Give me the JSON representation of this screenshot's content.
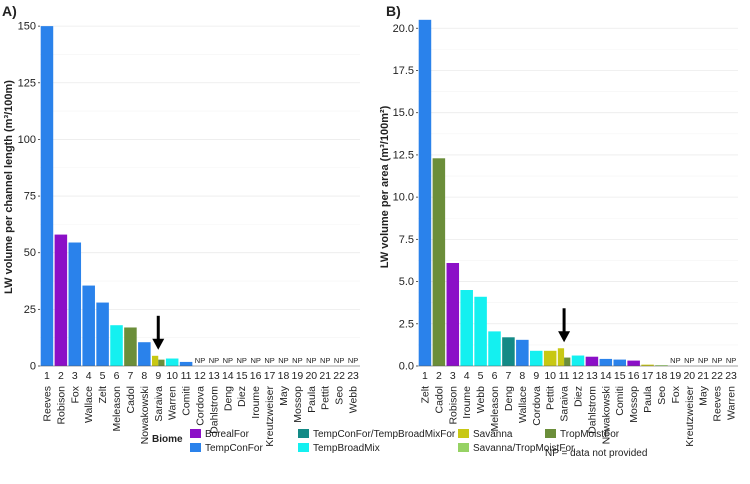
{
  "chart_data": [
    {
      "type": "bar",
      "panel_label": "A)",
      "ylabel": "LW volume per channel length (m³/100m)",
      "ylim": [
        0,
        158
      ],
      "yticks": [
        0,
        25,
        50,
        75,
        100,
        125,
        150
      ],
      "grid": true,
      "index_labels": [
        "1",
        "2",
        "3",
        "4",
        "5",
        "6",
        "7",
        "8",
        "9",
        "10",
        "11",
        "12",
        "13",
        "14",
        "15",
        "16",
        "17",
        "18",
        "19",
        "20",
        "21",
        "22",
        "23"
      ],
      "categories": [
        "Reeves",
        "Robison",
        "Fox",
        "Wallace",
        "Zelt",
        "Meleason",
        "Cadol",
        "Nowakowski",
        "Saraiva",
        "Warren",
        "Comiti",
        "Cordova",
        "Dahlstrom",
        "Deng",
        "Diez",
        "Iroume",
        "Kreutzweiser",
        "May",
        "Mossop",
        "Paula",
        "Pettit",
        "Seo",
        "Webb"
      ],
      "values": [
        150,
        58,
        54.5,
        35.5,
        28,
        18,
        17,
        10.5,
        4.5,
        3.3,
        1.8,
        null,
        null,
        null,
        null,
        null,
        null,
        null,
        null,
        null,
        null,
        null,
        null
      ],
      "biomes": [
        "TempConFor",
        "BorealFor",
        "TempConFor",
        "TempConFor",
        "TempConFor",
        "TempBroadMix",
        "TropMoistFor",
        "TempConFor",
        "Savanna",
        "TempBroadMix",
        "TempConFor",
        null,
        null,
        null,
        null,
        null,
        null,
        null,
        null,
        null,
        null,
        null,
        null
      ],
      "overlay": [
        null,
        null,
        null,
        null,
        null,
        null,
        null,
        null,
        {
          "value": 2.8,
          "biome": "TropMoistFor"
        },
        null,
        null,
        null,
        null,
        null,
        null,
        null,
        null,
        null,
        null,
        null,
        null,
        null,
        null
      ],
      "missing_label": "NP",
      "arrow_at_index": 9
    },
    {
      "type": "bar",
      "panel_label": "B)",
      "ylabel": "LW volume per area (m³/100m²)",
      "ylim": [
        0,
        21.2
      ],
      "yticks": [
        0,
        2.5,
        5,
        7.5,
        10,
        12.5,
        15,
        17.5,
        20
      ],
      "ytick_labels": [
        "0.0",
        "2.5",
        "5.0",
        "7.5",
        "10.0",
        "12.5",
        "15.0",
        "17.5",
        "20.0"
      ],
      "grid": true,
      "index_labels": [
        "1",
        "2",
        "3",
        "4",
        "5",
        "6",
        "7",
        "8",
        "9",
        "10",
        "11",
        "12",
        "13",
        "14",
        "15",
        "16",
        "17",
        "18",
        "19",
        "20",
        "21",
        "22",
        "23"
      ],
      "categories": [
        "Zelt",
        "Cadol",
        "Robison",
        "Iroume",
        "Webb",
        "Meleason",
        "Deng",
        "Wallace",
        "Cordova",
        "Pettit",
        "Saraiva",
        "Diez",
        "Dahlstrom",
        "Nowakowski",
        "Comiti",
        "Mossop",
        "Paula",
        "Seo",
        "Fox",
        "Kreutzweiser",
        "May",
        "Reeves",
        "Warren"
      ],
      "values": [
        20.5,
        12.3,
        6.1,
        4.5,
        4.1,
        2.05,
        1.7,
        1.55,
        0.9,
        0.9,
        1.05,
        0.62,
        0.55,
        0.42,
        0.38,
        0.32,
        0.08,
        0.05,
        null,
        null,
        null,
        null,
        null
      ],
      "biomes": [
        "TempConFor",
        "TropMoistFor",
        "BorealFor",
        "TempBroadMix",
        "TempBroadMix",
        "TempBroadMix",
        "TempConFor/TempBroadMixFor",
        "TempConFor",
        "TempBroadMix",
        "Savanna",
        "Savanna",
        "TempBroadMix",
        "BorealFor",
        "TempConFor",
        "TempConFor",
        "BorealFor",
        "Savanna",
        "Savanna/TropMoistFor",
        null,
        null,
        null,
        null,
        null
      ],
      "overlay": [
        null,
        null,
        null,
        null,
        null,
        null,
        null,
        null,
        null,
        null,
        {
          "value": 0.5,
          "biome": "TropMoistFor"
        },
        null,
        null,
        null,
        null,
        null,
        null,
        null,
        null,
        null,
        null,
        null,
        null
      ],
      "missing_label": "NP",
      "arrow_at_index": 11
    }
  ],
  "legend": {
    "title": "Biome",
    "items": [
      {
        "label": "BorealFor",
        "color": "#8b0fc7"
      },
      {
        "label": "TempConFor",
        "color": "#2a82eb"
      },
      {
        "label": "TempConFor/TempBroadMixFor",
        "color": "#138a86"
      },
      {
        "label": "TempBroadMix",
        "color": "#14f0f0"
      },
      {
        "label": "Savanna",
        "color": "#c8c814"
      },
      {
        "label": "Savanna/TropMoistFor",
        "color": "#96d264"
      },
      {
        "label": "TropMoistFor",
        "color": "#6b8e3a"
      }
    ],
    "note": "NP = data not provided"
  }
}
